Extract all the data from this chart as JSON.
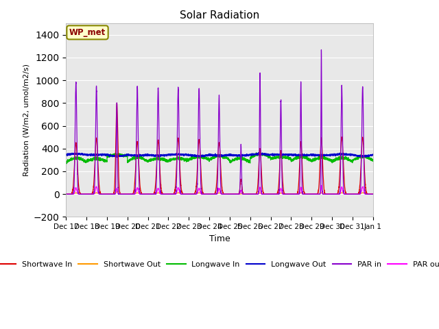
{
  "title": "Solar Radiation",
  "xlabel": "Time",
  "ylabel": "Radiation (W/m2, umol/m2/s)",
  "ylim": [
    -200,
    1500
  ],
  "yticks": [
    -200,
    0,
    200,
    400,
    600,
    800,
    1000,
    1200,
    1400
  ],
  "annotation_text": "WP_met",
  "bg_color": "#e8e8e8",
  "fig_color": "#ffffff",
  "series_colors": {
    "sw_in": "#dd0000",
    "sw_out": "#ff9900",
    "lw_in": "#00bb00",
    "lw_out": "#0000cc",
    "par_in": "#8800cc",
    "par_out": "#ff00ff"
  },
  "series_labels": {
    "sw_in": "Shortwave In",
    "sw_out": "Shortwave Out",
    "lw_in": "Longwave In",
    "lw_out": "Longwave Out",
    "par_in": "PAR in",
    "par_out": "PAR out"
  },
  "n_days": 15,
  "start_day": 17,
  "pts_per_day": 288
}
